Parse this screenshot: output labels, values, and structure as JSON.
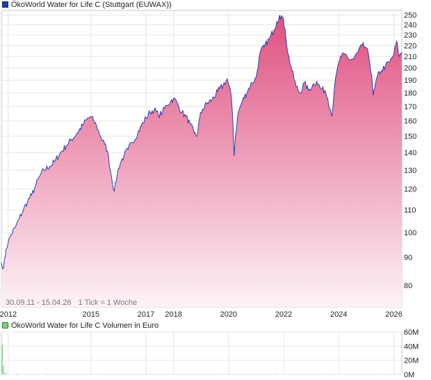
{
  "chart_data": [
    {
      "type": "area",
      "legend": "ÖkoWorld Water for Life C (Stuttgart (EUWAX))",
      "colors": {
        "line": "#2a3fa8",
        "fill_top": "#e05080",
        "fill_bottom": "#fdf3f7",
        "legend_swatch": "#1f3f9a"
      },
      "ylim": [
        73,
        255
      ],
      "ytick_labels": [
        "80",
        "90",
        "100",
        "110",
        "120",
        "130",
        "140",
        "150",
        "160",
        "170",
        "180",
        "190",
        "200",
        "210",
        "220",
        "230",
        "240",
        "250"
      ],
      "yticks": [
        80,
        90,
        100,
        110,
        120,
        130,
        140,
        150,
        160,
        170,
        180,
        190,
        200,
        210,
        220,
        230,
        240,
        250
      ],
      "scale": "log",
      "xlim": [
        2011.75,
        2026.29
      ],
      "xtick_labels": [
        "2012",
        "2015",
        "2017",
        "2018",
        "2020",
        "2022",
        "2024",
        "2026"
      ],
      "xticks": [
        2012,
        2015,
        2017,
        2018,
        2020,
        2022,
        2024,
        2026
      ],
      "date_range": "30.09.11 - 15.04.26",
      "tick_note": "1 Tick = 1 Woche",
      "grid": true,
      "series": [
        {
          "x": [
            2011.75,
            2011.83,
            2011.92,
            2012.0,
            2012.1,
            2012.25,
            2012.4,
            2012.55,
            2012.7,
            2012.85,
            2013.0,
            2013.15,
            2013.3,
            2013.5,
            2013.7,
            2013.9,
            2014.1,
            2014.3,
            2014.5,
            2014.7,
            2014.85,
            2015.0,
            2015.1,
            2015.2,
            2015.35,
            2015.5,
            2015.6,
            2015.75,
            2015.85,
            2016.0,
            2016.1,
            2016.2,
            2016.35,
            2016.5,
            2016.7,
            2016.9,
            2017.0,
            2017.15,
            2017.3,
            2017.45,
            2017.6,
            2017.75,
            2017.9,
            2018.0,
            2018.15,
            2018.3,
            2018.45,
            2018.6,
            2018.75,
            2018.85,
            2018.95,
            2019.05,
            2019.2,
            2019.4,
            2019.6,
            2019.8,
            2019.95,
            2020.1,
            2020.15,
            2020.2,
            2020.25,
            2020.35,
            2020.5,
            2020.7,
            2020.85,
            2021.0,
            2021.15,
            2021.3,
            2021.5,
            2021.65,
            2021.75,
            2021.85,
            2021.95,
            2022.05,
            2022.15,
            2022.3,
            2022.45,
            2022.6,
            2022.75,
            2022.9,
            2023.05,
            2023.2,
            2023.35,
            2023.5,
            2023.6,
            2023.7,
            2023.75,
            2023.85,
            2024.0,
            2024.1,
            2024.25,
            2024.4,
            2024.55,
            2024.7,
            2024.85,
            2025.0,
            2025.1,
            2025.2,
            2025.25,
            2025.3,
            2025.4,
            2025.55,
            2025.7,
            2025.85,
            2026.0,
            2026.1,
            2026.15,
            2026.2,
            2026.29
          ],
          "y": [
            88,
            86,
            93,
            96,
            99,
            102,
            106,
            110,
            114,
            117,
            122,
            127,
            130,
            132,
            135,
            140,
            144,
            148,
            152,
            157,
            161,
            163,
            160,
            157,
            150,
            145,
            141,
            126,
            119,
            131,
            135,
            138,
            142,
            146,
            152,
            159,
            162,
            166,
            168,
            164,
            166,
            171,
            174,
            176,
            172,
            166,
            163,
            158,
            152,
            150,
            162,
            168,
            172,
            175,
            181,
            186,
            191,
            177,
            162,
            138,
            150,
            166,
            174,
            182,
            188,
            192,
            214,
            219,
            227,
            235,
            243,
            250,
            248,
            236,
            213,
            198,
            185,
            180,
            188,
            182,
            186,
            189,
            183,
            182,
            176,
            168,
            163,
            185,
            205,
            210,
            212,
            207,
            208,
            214,
            220,
            218,
            208,
            194,
            178,
            183,
            193,
            198,
            202,
            205,
            212,
            224,
            216,
            210,
            214
          ]
        }
      ]
    },
    {
      "type": "bar",
      "legend": "ÖkoWorld Water for Life C Volumen in Euro",
      "colors": {
        "bar": "#7fd07f",
        "legend_swatch": "#7fd07f"
      },
      "ylim": [
        0,
        60
      ],
      "unit": "M",
      "ytick_labels": [
        "60M",
        "40M",
        "20M",
        "0M"
      ],
      "yticks": [
        60,
        40,
        20,
        0
      ],
      "grid": true,
      "bars": [
        {
          "x": 2011.77,
          "value": 42
        },
        {
          "x": 2011.82,
          "value": 12
        },
        {
          "x": 2011.9,
          "value": 3
        },
        {
          "x": 2012.3,
          "value": 1
        },
        {
          "x": 2013.4,
          "value": 0.8
        },
        {
          "x": 2015.2,
          "value": 0.6
        },
        {
          "x": 2017.8,
          "value": 0.5
        },
        {
          "x": 2019.6,
          "value": 0.6
        },
        {
          "x": 2021.7,
          "value": 0.8
        },
        {
          "x": 2023.4,
          "value": 0.6
        },
        {
          "x": 2025.6,
          "value": 0.5
        },
        {
          "x": 2026.2,
          "value": 0.7
        }
      ]
    }
  ]
}
